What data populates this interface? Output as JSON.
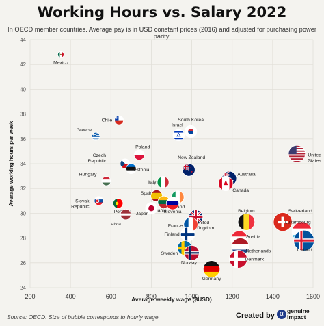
{
  "title": "Working Hours vs. Salary 2022",
  "subtitle": "In OECD member countries. Average pay is in USD constant prices (2016) and adjusted for purchasing power parity.",
  "footer": {
    "source": "Source: OECD. Size of bubble corresponds to hourly wage.",
    "credit": "Created by",
    "brand_line1": "genuine",
    "brand_line2": "impact",
    "brand_icon": "genuine-impact-logo-icon"
  },
  "chart_data": {
    "type": "scatter",
    "xlabel": "Average weekly wage ($USD)",
    "ylabel": "Average working hours per week",
    "xlim": [
      200,
      1600
    ],
    "ylim": [
      24,
      44
    ],
    "xticks": [
      200,
      400,
      600,
      800,
      1000,
      1200,
      1400,
      1600
    ],
    "yticks": [
      24,
      26,
      28,
      30,
      32,
      34,
      36,
      38,
      40,
      42,
      44
    ],
    "grid": true,
    "points": [
      {
        "label": "Mexico",
        "x": 352,
        "y": 42.8,
        "flag": "mexico"
      },
      {
        "label": "Chile",
        "x": 640,
        "y": 37.5,
        "flag": "chile"
      },
      {
        "label": "Greece",
        "x": 525,
        "y": 36.2,
        "flag": "greece"
      },
      {
        "label": "Israel",
        "x": 935,
        "y": 36.3,
        "flag": "israel"
      },
      {
        "label": "South Korea",
        "x": 995,
        "y": 36.6,
        "flag": "southkorea"
      },
      {
        "label": "Poland",
        "x": 740,
        "y": 34.7,
        "flag": "poland"
      },
      {
        "label": "Czech Republic",
        "x": 670,
        "y": 34.0,
        "flag": "czech"
      },
      {
        "label": "Estonia",
        "x": 700,
        "y": 33.6,
        "flag": "estonia"
      },
      {
        "label": "New Zealand",
        "x": 985,
        "y": 33.5,
        "flag": "newzealand"
      },
      {
        "label": "Australia",
        "x": 1185,
        "y": 32.8,
        "flag": "australia"
      },
      {
        "label": "United States",
        "x": 1520,
        "y": 34.8,
        "flag": "usa"
      },
      {
        "label": "Hungary",
        "x": 577,
        "y": 32.6,
        "flag": "hungary"
      },
      {
        "label": "Italy",
        "x": 858,
        "y": 32.5,
        "flag": "italy"
      },
      {
        "label": "Canada",
        "x": 1168,
        "y": 32.4,
        "flag": "canada"
      },
      {
        "label": "Spain",
        "x": 826,
        "y": 31.4,
        "flag": "spain"
      },
      {
        "label": "Portugal",
        "x": 635,
        "y": 30.8,
        "flag": "portugal"
      },
      {
        "label": "Slovak Republic",
        "x": 540,
        "y": 31.0,
        "flag": "slovakia"
      },
      {
        "label": "Ireland",
        "x": 930,
        "y": 31.3,
        "flag": "ireland"
      },
      {
        "label": "Lithuania",
        "x": 862,
        "y": 30.9,
        "flag": "lithuania"
      },
      {
        "label": "Japan",
        "x": 800,
        "y": 30.4,
        "flag": "japan"
      },
      {
        "label": "Slovenia",
        "x": 905,
        "y": 30.8,
        "flag": "slovenia"
      },
      {
        "label": "United Kingdom",
        "x": 1020,
        "y": 29.7,
        "flag": "uk"
      },
      {
        "label": "Latvia",
        "x": 673,
        "y": 29.9,
        "flag": "latvia"
      },
      {
        "label": "Belgium",
        "x": 1270,
        "y": 29.3,
        "flag": "belgium"
      },
      {
        "label": "Switzerland",
        "x": 1450,
        "y": 29.3,
        "flag": "switzerland"
      },
      {
        "label": "Luxembourg",
        "x": 1545,
        "y": 28.5,
        "flag": "luxembourg"
      },
      {
        "label": "France",
        "x": 995,
        "y": 29.1,
        "flag": "france"
      },
      {
        "label": "Finland",
        "x": 980,
        "y": 28.3,
        "flag": "finland"
      },
      {
        "label": "Austria",
        "x": 1235,
        "y": 27.9,
        "flag": "austria"
      },
      {
        "label": "Netherlands",
        "x": 1240,
        "y": 27.3,
        "flag": "netherlands"
      },
      {
        "label": "Iceland",
        "x": 1555,
        "y": 27.8,
        "flag": "iceland"
      },
      {
        "label": "Sweden",
        "x": 965,
        "y": 27.2,
        "flag": "sweden"
      },
      {
        "label": "Norway",
        "x": 1000,
        "y": 26.8,
        "flag": "norway"
      },
      {
        "label": "Denmark",
        "x": 1230,
        "y": 26.3,
        "flag": "denmark"
      },
      {
        "label": "Germany",
        "x": 1098,
        "y": 25.5,
        "flag": "germany"
      }
    ]
  }
}
